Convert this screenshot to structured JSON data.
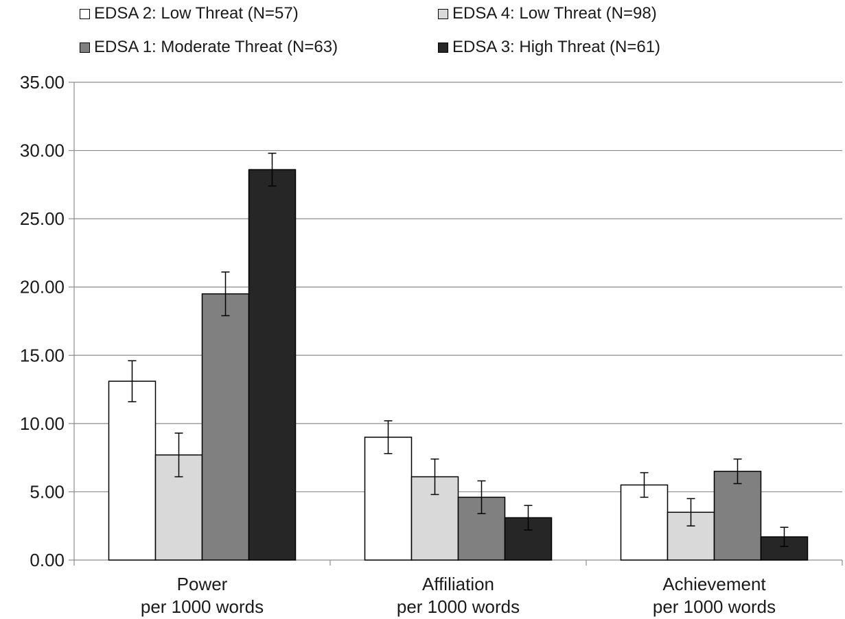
{
  "chart_data": {
    "type": "bar",
    "title": "",
    "xlabel": "",
    "ylabel": "",
    "ylim": [
      0,
      35
    ],
    "yticks": [
      "0.00",
      "5.00",
      "10.00",
      "15.00",
      "20.00",
      "25.00",
      "30.00",
      "35.00"
    ],
    "grid": true,
    "legend_position": "top",
    "categories": [
      [
        "Power",
        "per 1000 words"
      ],
      [
        "Affiliation",
        "per 1000 words"
      ],
      [
        "Achievement",
        "per 1000 words"
      ]
    ],
    "series": [
      {
        "name": "EDSA 2: Low Threat (N=57)",
        "color": "#ffffff",
        "values": [
          13.1,
          9.0,
          5.5
        ],
        "errors": [
          1.5,
          1.2,
          0.9
        ]
      },
      {
        "name": "EDSA 4: Low Threat (N=98)",
        "color": "#d9d9d9",
        "values": [
          7.7,
          6.1,
          3.5
        ],
        "errors": [
          1.6,
          1.3,
          1.0
        ]
      },
      {
        "name": "EDSA 1: Moderate Threat (N=63)",
        "color": "#808080",
        "values": [
          19.5,
          4.6,
          6.5
        ],
        "errors": [
          1.6,
          1.2,
          0.9
        ]
      },
      {
        "name": "EDSA 3: High Threat (N=61)",
        "color": "#262626",
        "values": [
          28.6,
          3.1,
          1.7
        ],
        "errors": [
          1.2,
          0.9,
          0.7
        ]
      }
    ]
  }
}
